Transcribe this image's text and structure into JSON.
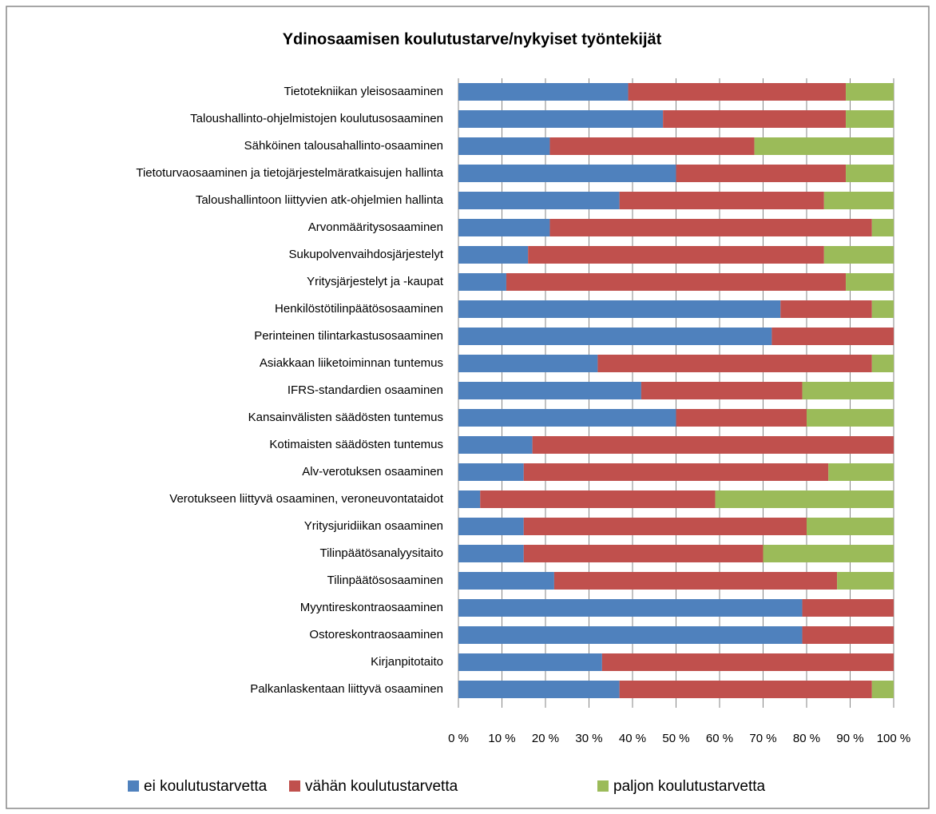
{
  "chart_data": {
    "type": "stacked_barh",
    "title": "Ydinosaamisen koulutustarve/nykyiset työntekijät",
    "categories": [
      "Tietotekniikan yleisosaaminen",
      "Taloushallinto-ohjelmistojen koulutusosaaminen",
      "Sähköinen talousahallinto-osaaminen",
      "Tietoturvaosaaminen ja tietojärjestelmäratkaisujen hallinta",
      "Taloushallintoon liittyvien atk-ohjelmien hallinta",
      "Arvonmääritysosaaminen",
      "Sukupolvenvaihdosjärjestelyt",
      "Yritysjärjestelyt ja -kaupat",
      "Henkilöstötilinpäätösosaaminen",
      "Perinteinen tilintarkastusosaaminen",
      "Asiakkaan liiketoiminnan tuntemus",
      "IFRS-standardien osaaminen",
      "Kansainvälisten säädösten tuntemus",
      "Kotimaisten säädösten tuntemus",
      "Alv-verotuksen osaaminen",
      "Verotukseen liittyvä osaaminen, veroneuvontataidot",
      "Yritysjuridiikan osaaminen",
      "Tilinpäätösanalyysitaito",
      "Tilinpäätösosaaminen",
      "Myyntireskontraosaaminen",
      "Ostoreskontraosaaminen",
      "Kirjanpitotaito",
      "Palkanlaskentaan liittyvä osaaminen"
    ],
    "series": [
      {
        "name": "ei koulutustarvetta",
        "color": "#4f81bd",
        "values": [
          39,
          47,
          21,
          50,
          37,
          21,
          16,
          11,
          74,
          72,
          32,
          42,
          50,
          17,
          15,
          5,
          15,
          15,
          22,
          79,
          79,
          33,
          37
        ]
      },
      {
        "name": "vähän koulutustarvetta",
        "color": "#c0504d",
        "values": [
          50,
          42,
          47,
          39,
          47,
          74,
          68,
          78,
          21,
          28,
          63,
          37,
          30,
          83,
          70,
          54,
          65,
          55,
          65,
          21,
          21,
          67,
          58
        ]
      },
      {
        "name": "paljon koulutustarvetta",
        "color": "#9bbb59",
        "values": [
          11,
          11,
          32,
          11,
          16,
          5,
          16,
          11,
          5,
          0,
          5,
          21,
          20,
          0,
          15,
          41,
          20,
          30,
          13,
          0,
          0,
          0,
          5
        ]
      }
    ],
    "xlim": [
      0,
      100
    ],
    "xticks": [
      {
        "value": 0,
        "label": "0 %"
      },
      {
        "value": 10,
        "label": "10 %"
      },
      {
        "value": 20,
        "label": "20 %"
      },
      {
        "value": 30,
        "label": "30 %"
      },
      {
        "value": 40,
        "label": "40 %"
      },
      {
        "value": 50,
        "label": "50 %"
      },
      {
        "value": 60,
        "label": "60 %"
      },
      {
        "value": 70,
        "label": "70 %"
      },
      {
        "value": 80,
        "label": "80 %"
      },
      {
        "value": 90,
        "label": "90 %"
      },
      {
        "value": 100,
        "label": "100 %"
      }
    ],
    "grid": true,
    "legend": "bottom"
  }
}
